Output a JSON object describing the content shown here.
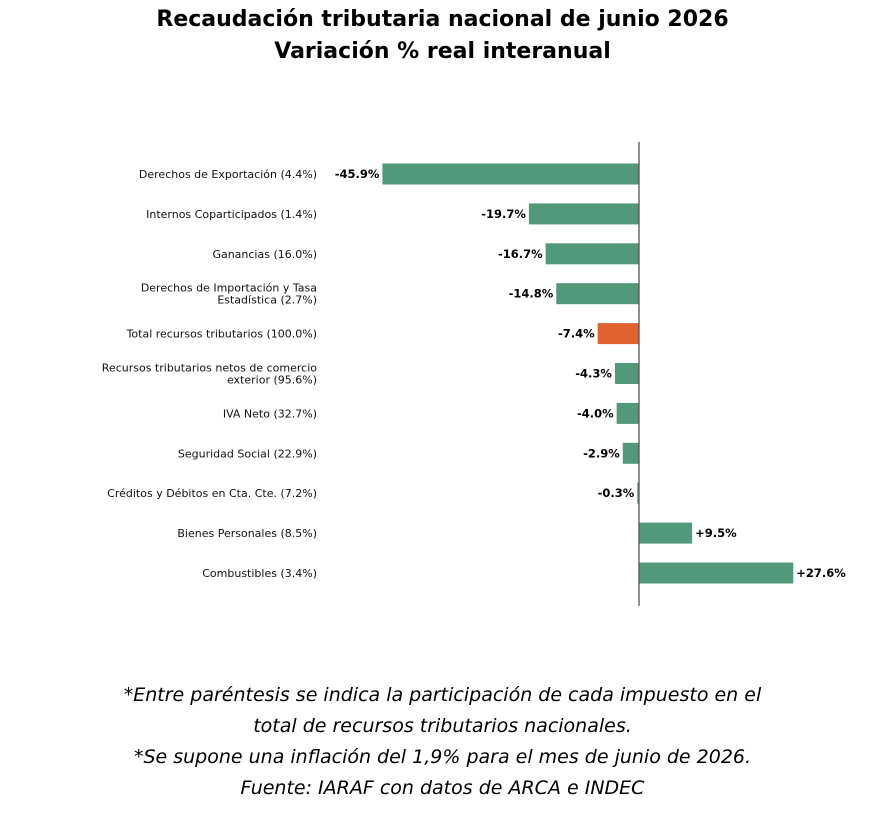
{
  "chart_data": {
    "type": "bar",
    "orientation": "horizontal",
    "title": "Recaudación tributaria nacional de junio 2026",
    "subtitle": "Variación % real interanual",
    "xlabel": "",
    "ylabel": "",
    "xlim": [
      -46,
      28
    ],
    "grid": false,
    "colors": {
      "default": "#52997b",
      "highlight": "#e0622f",
      "axis": "#555555"
    },
    "categories": [
      "Derechos de Exportación (4.4%)",
      "Internos Coparticipados (1.4%)",
      "Ganancias (16.0%)",
      "Derechos de Importación y Tasa Estadística (2.7%)",
      "Total recursos tributarios (100.0%)",
      "Recursos tributarios netos de comercio exterior (95.6%)",
      "IVA Neto (32.7%)",
      "Seguridad Social (22.9%)",
      "Créditos y Débitos en Cta. Cte. (7.2%)",
      "Bienes Personales (8.5%)",
      "Combustibles (3.4%)"
    ],
    "label_lines": [
      [
        "Derechos de Exportación (4.4%)"
      ],
      [
        "Internos Coparticipados (1.4%)"
      ],
      [
        "Ganancias (16.0%)"
      ],
      [
        "Derechos de Importación y Tasa",
        "Estadística (2.7%)"
      ],
      [
        "Total recursos tributarios (100.0%)"
      ],
      [
        "Recursos tributarios netos de comercio",
        "exterior (95.6%)"
      ],
      [
        "IVA Neto (32.7%)"
      ],
      [
        "Seguridad Social (22.9%)"
      ],
      [
        "Créditos y Débitos en Cta. Cte. (7.2%)"
      ],
      [
        "Bienes Personales (8.5%)"
      ],
      [
        "Combustibles (3.4%)"
      ]
    ],
    "values": [
      -45.9,
      -19.7,
      -16.7,
      -14.8,
      -7.4,
      -4.3,
      -4.0,
      -2.9,
      -0.3,
      9.5,
      27.6
    ],
    "value_labels": [
      "-45.9%",
      "-19.7%",
      "-16.7%",
      "-14.8%",
      "-7.4%",
      "-4.3%",
      "-4.0%",
      "-2.9%",
      "-0.3%",
      "+9.5%",
      "+27.6%"
    ],
    "highlight": [
      false,
      false,
      false,
      false,
      true,
      false,
      false,
      false,
      false,
      false,
      false
    ]
  },
  "notes": [
    "*Entre paréntesis se indica la participación de cada impuesto en el",
    "total de recursos tributarios nacionales.",
    "*Se supone una inflación del 1,9% para el mes de junio de 2026.",
    "Fuente: IARAF con datos de ARCA e INDEC"
  ]
}
